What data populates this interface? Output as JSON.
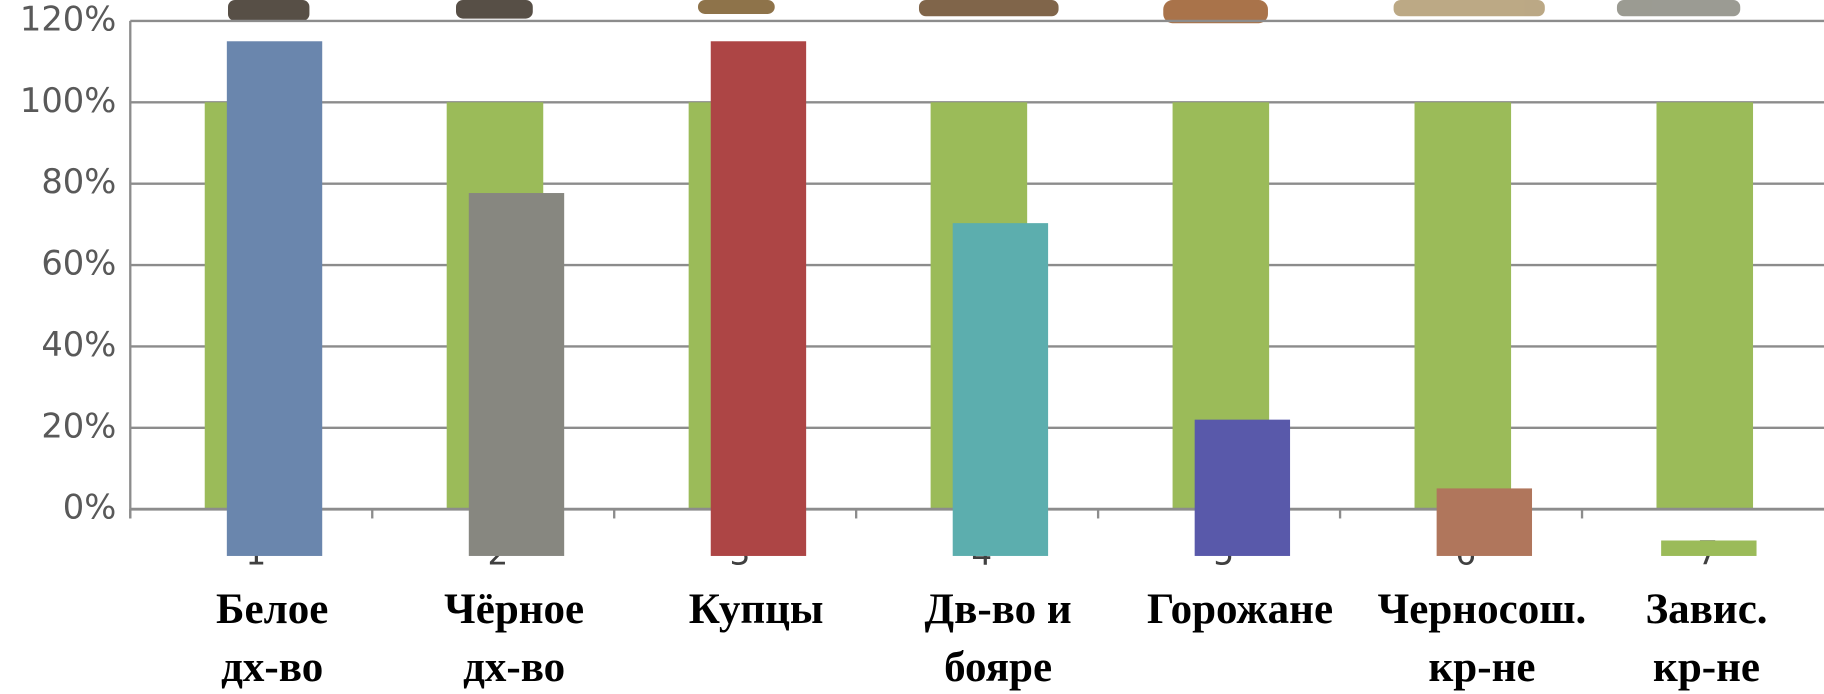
{
  "chart_data": {
    "type": "bar",
    "categories": [
      1,
      2,
      3,
      4,
      5,
      6,
      7
    ],
    "labels": [
      [
        "Белое",
        "дх-во"
      ],
      [
        "Чёрное",
        "дх-во"
      ],
      [
        "Купцы"
      ],
      [
        "Дв-во и",
        "бояре"
      ],
      [
        "Горожане"
      ],
      [
        "Черносош.",
        "кр-не"
      ],
      [
        "Завис.",
        "кр-не"
      ]
    ],
    "series": [
      {
        "color": "#9bbb59",
        "values": [
          100,
          100,
          100,
          100,
          100,
          100,
          100
        ]
      },
      {
        "colors": [
          "#6a86ad",
          "#878780",
          "#ad4545",
          "#5caeae",
          "#5959aa",
          "#b0765c",
          "#9bbb59"
        ],
        "values": [
          115,
          77.7,
          115,
          70.3,
          22,
          5.1,
          -7.7
        ]
      }
    ],
    "ylim": [
      -11.5,
      120
    ],
    "yticks": [
      {
        "value": 0,
        "label": "0%"
      },
      {
        "value": 20,
        "label": "20%"
      },
      {
        "value": 40,
        "label": "40%"
      },
      {
        "value": 60,
        "label": "60%"
      },
      {
        "value": 80,
        "label": "80%"
      },
      {
        "value": 100,
        "label": "100%"
      },
      {
        "value": 120,
        "label": "120%"
      }
    ],
    "grid": true
  }
}
